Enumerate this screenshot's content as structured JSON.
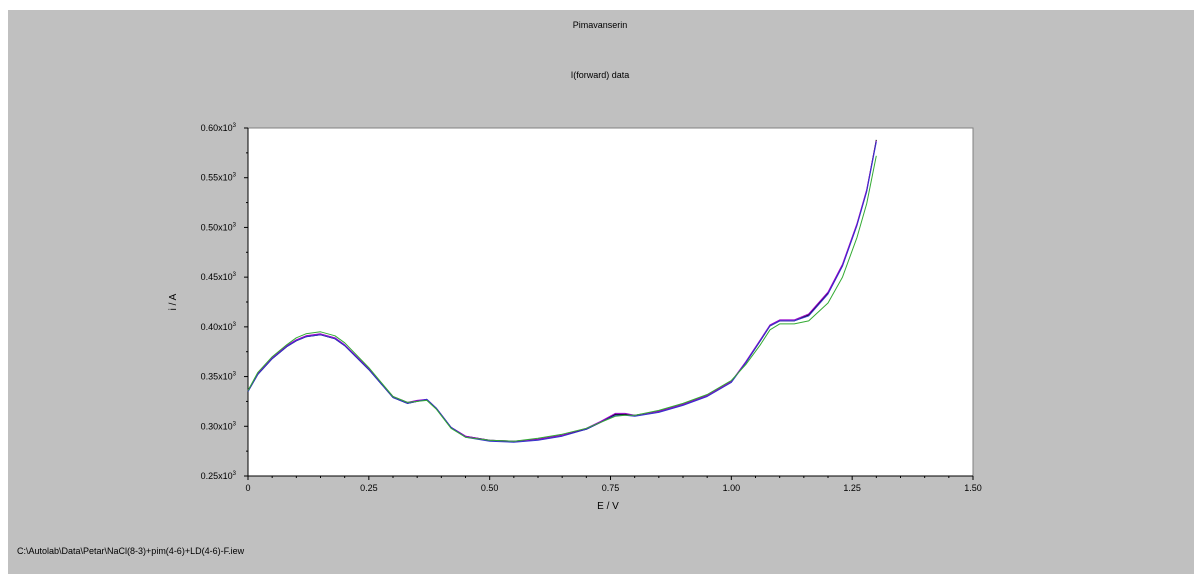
{
  "title": "Pimavanserin",
  "subtitle": "I(forward) data",
  "footer": "C:\\Autolab\\Data\\Petar\\NaCl(8-3)+pim(4-6)+LD(4-6)-F.iew",
  "colors": {
    "background": "#c0c0c0",
    "plot_area": "#ffffff",
    "series": [
      "#000000",
      "#9900cc",
      "#3333cc",
      "#33aa33"
    ]
  },
  "chart_data": {
    "type": "line",
    "title": "Pimavanserin",
    "subtitle": "I(forward) data",
    "xlabel": "E / V",
    "ylabel": "i / A",
    "xlim": [
      0,
      1.5
    ],
    "ylim": [
      0.25,
      0.6
    ],
    "x_ticks": [
      0,
      0.25,
      0.5,
      0.75,
      1.0,
      1.25,
      1.5
    ],
    "x_tick_labels": [
      "0",
      "0.25",
      "0.50",
      "0.75",
      "1.00",
      "1.25",
      "1.50"
    ],
    "y_ticks": [
      0.25,
      0.3,
      0.35,
      0.4,
      0.45,
      0.5,
      0.55,
      0.6
    ],
    "y_tick_labels": [
      "0.25x10",
      "0.30x10",
      "0.35x10",
      "0.40x10",
      "0.45x10",
      "0.50x10",
      "0.55x10",
      "0.60x10"
    ],
    "y_tick_exponent": "3",
    "grid": false,
    "series": [
      {
        "color": "#000000",
        "x": [
          0,
          0.02,
          0.05,
          0.08,
          0.1,
          0.12,
          0.15,
          0.18,
          0.2,
          0.25,
          0.3,
          0.33,
          0.35,
          0.37,
          0.39,
          0.42,
          0.45,
          0.5,
          0.55,
          0.6,
          0.65,
          0.7,
          0.73,
          0.76,
          0.78,
          0.8,
          0.85,
          0.9,
          0.95,
          1.0,
          1.03,
          1.06,
          1.08,
          1.1,
          1.13,
          1.16,
          1.2,
          1.23,
          1.26,
          1.28,
          1.3
        ],
        "y": [
          0.335,
          0.352,
          0.368,
          0.38,
          0.386,
          0.39,
          0.392,
          0.388,
          0.381,
          0.357,
          0.329,
          0.323,
          0.325,
          0.327,
          0.318,
          0.299,
          0.29,
          0.286,
          0.285,
          0.287,
          0.291,
          0.297,
          0.304,
          0.312,
          0.312,
          0.311,
          0.315,
          0.322,
          0.331,
          0.345,
          0.364,
          0.386,
          0.401,
          0.406,
          0.406,
          0.412,
          0.434,
          0.462,
          0.503,
          0.537,
          0.588
        ]
      },
      {
        "color": "#9900cc",
        "x": [
          0,
          0.02,
          0.05,
          0.08,
          0.1,
          0.12,
          0.15,
          0.18,
          0.2,
          0.25,
          0.3,
          0.33,
          0.35,
          0.37,
          0.39,
          0.42,
          0.45,
          0.5,
          0.55,
          0.6,
          0.65,
          0.7,
          0.73,
          0.76,
          0.78,
          0.8,
          0.85,
          0.9,
          0.95,
          1.0,
          1.03,
          1.06,
          1.08,
          1.1,
          1.13,
          1.16,
          1.2,
          1.23,
          1.26,
          1.28,
          1.3
        ],
        "y": [
          0.336,
          0.353,
          0.369,
          0.381,
          0.387,
          0.391,
          0.393,
          0.389,
          0.382,
          0.358,
          0.33,
          0.324,
          0.326,
          0.327,
          0.318,
          0.299,
          0.29,
          0.286,
          0.285,
          0.287,
          0.291,
          0.298,
          0.305,
          0.313,
          0.313,
          0.311,
          0.315,
          0.322,
          0.331,
          0.345,
          0.365,
          0.387,
          0.402,
          0.407,
          0.407,
          0.413,
          0.435,
          0.463,
          0.504,
          0.538,
          0.587
        ]
      },
      {
        "color": "#3333cc",
        "x": [
          0,
          0.02,
          0.05,
          0.08,
          0.1,
          0.12,
          0.15,
          0.18,
          0.2,
          0.25,
          0.3,
          0.33,
          0.35,
          0.37,
          0.39,
          0.42,
          0.45,
          0.5,
          0.55,
          0.6,
          0.65,
          0.7,
          0.73,
          0.76,
          0.78,
          0.8,
          0.85,
          0.9,
          0.95,
          1.0,
          1.03,
          1.06,
          1.08,
          1.1,
          1.13,
          1.16,
          1.2,
          1.23,
          1.26,
          1.28,
          1.3
        ],
        "y": [
          0.335,
          0.352,
          0.368,
          0.38,
          0.386,
          0.39,
          0.392,
          0.388,
          0.381,
          0.357,
          0.329,
          0.323,
          0.325,
          0.327,
          0.318,
          0.299,
          0.289,
          0.285,
          0.284,
          0.286,
          0.29,
          0.297,
          0.304,
          0.311,
          0.311,
          0.31,
          0.314,
          0.321,
          0.33,
          0.344,
          0.364,
          0.386,
          0.401,
          0.406,
          0.406,
          0.411,
          0.433,
          0.461,
          0.502,
          0.536,
          0.586
        ]
      },
      {
        "color": "#33aa33",
        "x": [
          0,
          0.02,
          0.05,
          0.08,
          0.1,
          0.12,
          0.15,
          0.18,
          0.2,
          0.25,
          0.3,
          0.33,
          0.35,
          0.37,
          0.39,
          0.42,
          0.45,
          0.5,
          0.55,
          0.6,
          0.65,
          0.7,
          0.73,
          0.76,
          0.78,
          0.8,
          0.85,
          0.9,
          0.95,
          1.0,
          1.03,
          1.06,
          1.08,
          1.1,
          1.13,
          1.16,
          1.2,
          1.23,
          1.26,
          1.28,
          1.3
        ],
        "y": [
          0.336,
          0.354,
          0.37,
          0.382,
          0.389,
          0.393,
          0.395,
          0.391,
          0.384,
          0.359,
          0.33,
          0.324,
          0.325,
          0.326,
          0.317,
          0.298,
          0.289,
          0.286,
          0.285,
          0.288,
          0.292,
          0.298,
          0.304,
          0.31,
          0.311,
          0.311,
          0.316,
          0.323,
          0.332,
          0.346,
          0.362,
          0.382,
          0.397,
          0.403,
          0.403,
          0.406,
          0.424,
          0.45,
          0.49,
          0.524,
          0.572
        ]
      }
    ]
  }
}
